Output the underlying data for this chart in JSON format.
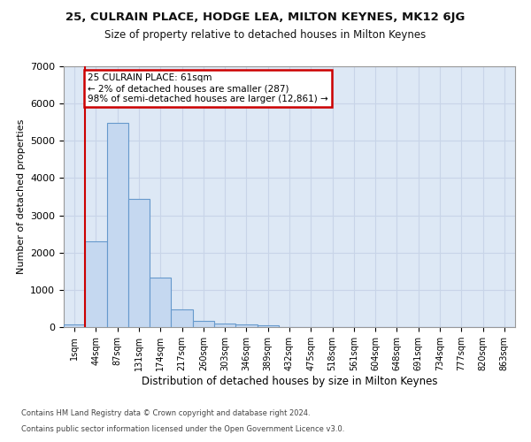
{
  "title_line1": "25, CULRAIN PLACE, HODGE LEA, MILTON KEYNES, MK12 6JG",
  "title_line2": "Size of property relative to detached houses in Milton Keynes",
  "xlabel": "Distribution of detached houses by size in Milton Keynes",
  "ylabel": "Number of detached properties",
  "footer_line1": "Contains HM Land Registry data © Crown copyright and database right 2024.",
  "footer_line2": "Contains public sector information licensed under the Open Government Licence v3.0.",
  "bar_labels": [
    "1sqm",
    "44sqm",
    "87sqm",
    "131sqm",
    "174sqm",
    "217sqm",
    "260sqm",
    "303sqm",
    "346sqm",
    "389sqm",
    "432sqm",
    "475sqm",
    "518sqm",
    "561sqm",
    "604sqm",
    "648sqm",
    "691sqm",
    "734sqm",
    "777sqm",
    "820sqm",
    "863sqm"
  ],
  "bar_values": [
    80,
    2300,
    5480,
    3450,
    1320,
    470,
    165,
    95,
    65,
    40,
    0,
    0,
    0,
    0,
    0,
    0,
    0,
    0,
    0,
    0,
    0
  ],
  "bar_color": "#c5d8f0",
  "bar_edge_color": "#6699cc",
  "grid_color": "#c8d4e8",
  "background_color": "#dde8f5",
  "vline_color": "#cc0000",
  "annotation_text": "25 CULRAIN PLACE: 61sqm\n← 2% of detached houses are smaller (287)\n98% of semi-detached houses are larger (12,861) →",
  "annotation_box_facecolor": "#ffffff",
  "annotation_box_edgecolor": "#cc0000",
  "ylim": [
    0,
    7000
  ],
  "yticks": [
    0,
    1000,
    2000,
    3000,
    4000,
    5000,
    6000,
    7000
  ]
}
